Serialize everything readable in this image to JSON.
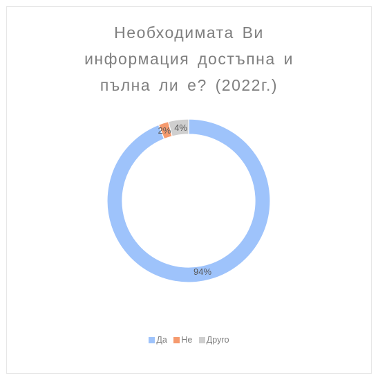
{
  "chart_data": {
    "type": "pie",
    "variant": "doughnut",
    "title_lines": [
      "Необходимата Ви",
      "информация достъпна и",
      "пълна ли е? (2022г.)"
    ],
    "categories": [
      "Да",
      "Не",
      "Друго"
    ],
    "values": [
      94,
      2,
      4
    ],
    "data_labels": [
      "94%",
      "2%",
      "4%"
    ],
    "colors": [
      "#9ec3fb",
      "#f59a6e",
      "#cfcfcf"
    ],
    "legend_position": "bottom"
  }
}
